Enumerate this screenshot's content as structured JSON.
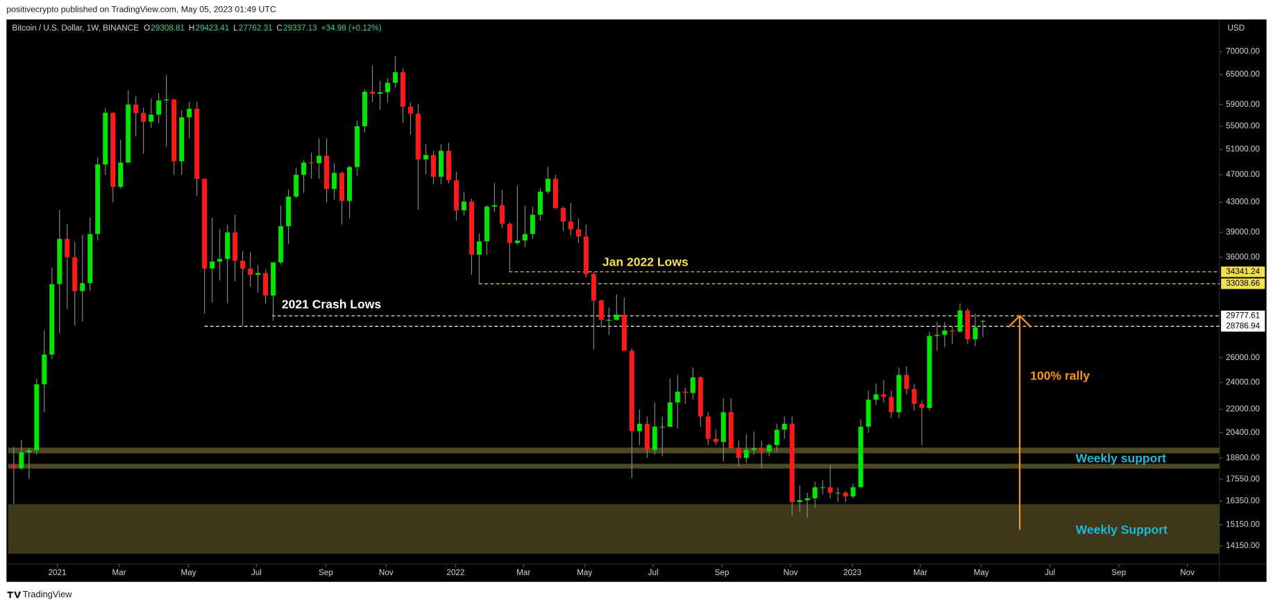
{
  "header": {
    "publisher": "positivecrypto published on TradingView.com, May 05, 2023 01:49 UTC"
  },
  "footer": {
    "brand": "TradingView"
  },
  "chart_data": {
    "type": "candlestick",
    "symbol": "Bitcoin / U.S. Dollar, 1W, BINANCE",
    "currency": "USD",
    "legend_values": [
      {
        "label": "O",
        "value": 29308.81
      },
      {
        "label": "H",
        "value": 29423.41
      },
      {
        "label": "L",
        "value": 27762.31
      },
      {
        "label": "C",
        "value": 29337.13
      }
    ],
    "change": "+34.98 (+0.12%)",
    "legend_color": "#3fcf8e",
    "up_color": "#00e600",
    "down_color": "#ff1a1a",
    "wick_color": "#8a8a8a",
    "log_scale": true,
    "grid": false,
    "ylim": [
      13340,
      77700
    ],
    "yticks": [
      {
        "value": 70000,
        "label": "70000.00"
      },
      {
        "value": 65000,
        "label": "65000.00"
      },
      {
        "value": 59000,
        "label": "59000.00"
      },
      {
        "value": 55000,
        "label": "55000.00"
      },
      {
        "value": 51000,
        "label": "51000.00"
      },
      {
        "value": 47000,
        "label": "47000.00"
      },
      {
        "value": 43000,
        "label": "43000.00"
      },
      {
        "value": 39000,
        "label": "39000.00"
      },
      {
        "value": 36000,
        "label": "36000.00"
      },
      {
        "value": 26000,
        "label": "26000.00"
      },
      {
        "value": 24000,
        "label": "24000.00"
      },
      {
        "value": 22000,
        "label": "22000.00"
      },
      {
        "value": 20400,
        "label": "20400.00"
      },
      {
        "value": 18800,
        "label": "18800.00"
      },
      {
        "value": 17550,
        "label": "17550.00"
      },
      {
        "value": 16350,
        "label": "16350.00"
      },
      {
        "value": 15150,
        "label": "15150.00"
      },
      {
        "value": 14150,
        "label": "14150.00"
      }
    ],
    "xlim": [
      -0.74,
      158
    ],
    "xticks": [
      {
        "value": 5.7,
        "label": "2021"
      },
      {
        "value": 13.8,
        "label": "Mar"
      },
      {
        "value": 22.9,
        "label": "May"
      },
      {
        "value": 31.8,
        "label": "Jul"
      },
      {
        "value": 40.9,
        "label": "Sep"
      },
      {
        "value": 48.8,
        "label": "Nov"
      },
      {
        "value": 57.9,
        "label": "2022"
      },
      {
        "value": 66.8,
        "label": "Mar"
      },
      {
        "value": 74.8,
        "label": "May"
      },
      {
        "value": 83.8,
        "label": "Jul"
      },
      {
        "value": 92.8,
        "label": "Sep"
      },
      {
        "value": 101.8,
        "label": "Nov"
      },
      {
        "value": 109.9,
        "label": "2023"
      },
      {
        "value": 118.8,
        "label": "Mar"
      },
      {
        "value": 126.8,
        "label": "May"
      },
      {
        "value": 135.8,
        "label": "Jul"
      },
      {
        "value": 144.8,
        "label": "Sep"
      },
      {
        "value": 153.8,
        "label": "Nov"
      }
    ],
    "candles": [
      [
        18360,
        19480,
        16190,
        18180
      ],
      [
        18180,
        19920,
        18110,
        19150
      ],
      [
        19150,
        19420,
        17580,
        19270
      ],
      [
        19270,
        24300,
        19000,
        23860
      ],
      [
        23860,
        28420,
        21800,
        26270
      ],
      [
        26270,
        34800,
        25900,
        33000
      ],
      [
        33000,
        41950,
        28130,
        38200
      ],
      [
        38200,
        40100,
        30420,
        36000
      ],
      [
        36000,
        37850,
        28850,
        32260
      ],
      [
        32260,
        38700,
        29240,
        33100
      ],
      [
        33100,
        40950,
        32300,
        38800
      ],
      [
        38800,
        49700,
        37990,
        48600
      ],
      [
        48600,
        58350,
        47000,
        57450
      ],
      [
        57450,
        57500,
        43000,
        45200
      ],
      [
        45200,
        52650,
        44950,
        48900
      ],
      [
        48900,
        61800,
        48900,
        59000
      ],
      [
        59000,
        60600,
        53200,
        57400
      ],
      [
        57400,
        58400,
        50300,
        55800
      ],
      [
        55800,
        60200,
        54700,
        57100
      ],
      [
        57100,
        61200,
        55500,
        59800
      ],
      [
        59800,
        64900,
        51500,
        60000
      ],
      [
        60000,
        60000,
        47000,
        49100
      ],
      [
        49100,
        57900,
        47000,
        56600
      ],
      [
        56600,
        59500,
        52900,
        58200
      ],
      [
        58200,
        59500,
        43900,
        46400
      ],
      [
        46400,
        46400,
        30000,
        34700
      ],
      [
        34700,
        40900,
        31100,
        35500
      ],
      [
        35500,
        39400,
        33400,
        35800
      ],
      [
        35800,
        40000,
        31000,
        39000
      ],
      [
        39000,
        41300,
        33300,
        35600
      ],
      [
        35600,
        36700,
        28800,
        34700
      ],
      [
        34700,
        36600,
        32700,
        34000
      ],
      [
        34000,
        35100,
        32100,
        34200
      ],
      [
        34200,
        34600,
        31000,
        31800
      ],
      [
        31800,
        35400,
        29300,
        35400
      ],
      [
        35400,
        42500,
        35200,
        39800
      ],
      [
        39800,
        44800,
        37600,
        43800
      ],
      [
        43800,
        48100,
        43600,
        47000
      ],
      [
        47000,
        49300,
        44300,
        48900
      ],
      [
        48900,
        50500,
        46400,
        48800
      ],
      [
        48800,
        52900,
        46400,
        50000
      ],
      [
        50000,
        52900,
        43000,
        44900
      ],
      [
        44900,
        48800,
        43400,
        47300
      ],
      [
        47300,
        47500,
        40000,
        43200
      ],
      [
        43200,
        48400,
        40800,
        48200
      ],
      [
        48200,
        56000,
        46900,
        55000
      ],
      [
        55000,
        62000,
        53900,
        61500
      ],
      [
        61500,
        67000,
        59500,
        61100
      ],
      [
        61100,
        63700,
        58000,
        61400
      ],
      [
        61400,
        64300,
        59400,
        63300
      ],
      [
        63300,
        69000,
        62300,
        65500
      ],
      [
        65500,
        66300,
        55600,
        58600
      ],
      [
        58600,
        59400,
        53500,
        57300
      ],
      [
        57300,
        59100,
        42000,
        49400
      ],
      [
        49400,
        51900,
        47100,
        50100
      ],
      [
        50100,
        50800,
        45600,
        46700
      ],
      [
        46700,
        51900,
        45600,
        50800
      ],
      [
        50800,
        52100,
        45700,
        46200
      ],
      [
        46200,
        47500,
        40500,
        41900
      ],
      [
        41900,
        44500,
        41200,
        43100
      ],
      [
        43100,
        43500,
        34000,
        36300
      ],
      [
        36300,
        38900,
        33000,
        37900
      ],
      [
        37900,
        42600,
        36300,
        42400
      ],
      [
        42400,
        45800,
        41700,
        42600
      ],
      [
        42600,
        44800,
        39600,
        40100
      ],
      [
        40100,
        40300,
        34300,
        37700
      ],
      [
        37700,
        45400,
        37500,
        38000
      ],
      [
        38000,
        42500,
        37200,
        38800
      ],
      [
        38800,
        42400,
        38200,
        41300
      ],
      [
        41300,
        45000,
        40500,
        44500
      ],
      [
        44500,
        48200,
        44200,
        46400
      ],
      [
        46400,
        47000,
        42100,
        42200
      ],
      [
        42200,
        42400,
        39200,
        40400
      ],
      [
        40400,
        42900,
        38600,
        39400
      ],
      [
        39400,
        40800,
        37700,
        38500
      ],
      [
        38500,
        40000,
        33700,
        34100
      ],
      [
        34100,
        34300,
        26700,
        31300
      ],
      [
        31300,
        31400,
        28700,
        29400
      ],
      [
        29400,
        30600,
        28000,
        29400
      ],
      [
        29400,
        31900,
        29300,
        29900
      ],
      [
        29900,
        31600,
        26600,
        26600
      ],
      [
        26600,
        26800,
        17600,
        20500
      ],
      [
        20500,
        22000,
        19600,
        21000
      ],
      [
        21000,
        21500,
        18800,
        19300
      ],
      [
        19300,
        22500,
        19000,
        20800
      ],
      [
        20800,
        21500,
        18900,
        20800
      ],
      [
        20800,
        24300,
        20800,
        22500
      ],
      [
        22500,
        24600,
        20700,
        23300
      ],
      [
        23300,
        23600,
        22400,
        23200
      ],
      [
        23200,
        25200,
        22700,
        24400
      ],
      [
        24400,
        24500,
        20800,
        21500
      ],
      [
        21500,
        21800,
        19600,
        20000
      ],
      [
        20000,
        20600,
        19600,
        19800
      ],
      [
        19800,
        22800,
        18600,
        21800
      ],
      [
        21800,
        22800,
        19400,
        19400
      ],
      [
        19400,
        19900,
        18300,
        18800
      ],
      [
        18800,
        20300,
        18500,
        19300
      ],
      [
        19300,
        20500,
        19000,
        19400
      ],
      [
        19400,
        19900,
        18200,
        19200
      ],
      [
        19200,
        19700,
        18900,
        19600
      ],
      [
        19600,
        21000,
        19200,
        20600
      ],
      [
        20600,
        21500,
        20000,
        21000
      ],
      [
        21000,
        21500,
        15600,
        16300
      ],
      [
        16300,
        17200,
        15800,
        16400
      ],
      [
        16400,
        16800,
        15500,
        16500
      ],
      [
        16500,
        17400,
        16000,
        17100
      ],
      [
        17100,
        17500,
        16700,
        17100
      ],
      [
        17100,
        18400,
        16500,
        16800
      ],
      [
        16800,
        17100,
        16300,
        16800
      ],
      [
        16800,
        16900,
        16300,
        16600
      ],
      [
        16600,
        17300,
        16500,
        17100
      ],
      [
        17100,
        21300,
        17100,
        20800
      ],
      [
        20800,
        23400,
        20400,
        22700
      ],
      [
        22700,
        23900,
        22300,
        23100
      ],
      [
        23100,
        24200,
        22500,
        22900
      ],
      [
        22900,
        23400,
        21400,
        21800
      ],
      [
        21800,
        25200,
        21400,
        24600
      ],
      [
        24600,
        25300,
        23100,
        23500
      ],
      [
        23500,
        23900,
        21900,
        22400
      ],
      [
        22400,
        22600,
        19600,
        22100
      ],
      [
        22100,
        28300,
        21900,
        27900
      ],
      [
        27900,
        29200,
        26600,
        28000
      ],
      [
        28000,
        29200,
        26900,
        28400
      ],
      [
        28400,
        28800,
        27200,
        28300
      ],
      [
        28300,
        31000,
        28200,
        30300
      ],
      [
        30300,
        30500,
        27200,
        27600
      ],
      [
        27600,
        30000,
        27000,
        28700
      ],
      [
        29300,
        29400,
        27800,
        29300
      ]
    ],
    "levels": [
      {
        "value": 34341.24,
        "color": "#f2e14c",
        "text_color": "#000000"
      },
      {
        "value": 33038.66,
        "color": "#f2e14c",
        "text_color": "#000000"
      },
      {
        "value": 29777.61,
        "color": "#ffffff",
        "text_color": "#000000"
      },
      {
        "value": 28786.94,
        "color": "#ffffff",
        "text_color": "#000000"
      }
    ],
    "zones": [
      {
        "low": 19085,
        "high": 19440,
        "color": "#4d4824"
      },
      {
        "low": 18165,
        "high": 18450,
        "color": "#4d4824"
      },
      {
        "low": 13790,
        "high": 16190,
        "color": "#3d3819"
      }
    ],
    "annotations": [
      {
        "text": "Jan 2022 Lows",
        "color": "#f2e14c"
      },
      {
        "text": "2021 Crash Lows",
        "color": "#ffffff"
      },
      {
        "text": "100% rally",
        "color": "#f7931a"
      },
      {
        "text": "Weekly support",
        "color": "#1fb8d6"
      },
      {
        "text": "Weekly Support",
        "color": "#1fb8d6"
      }
    ],
    "arrow": {
      "from": 14900,
      "to": 29777.61,
      "color": "#f7931a"
    }
  }
}
